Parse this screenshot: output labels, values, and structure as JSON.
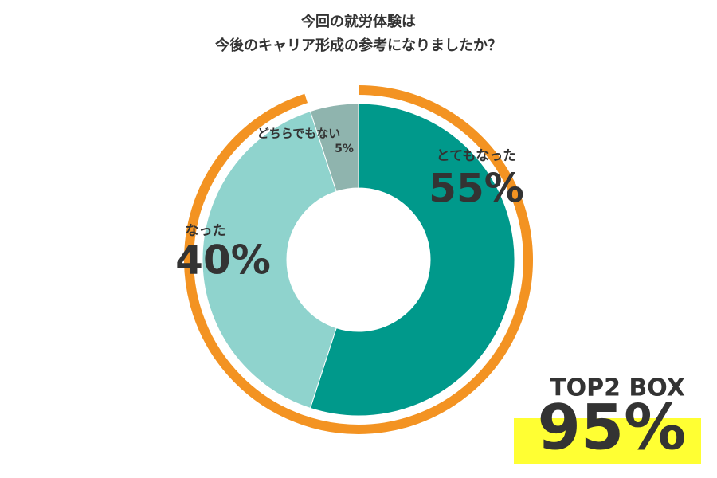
{
  "chart_data": {
    "type": "donut",
    "title": [
      "今回の就労体験は",
      "今後のキャリア形成の参考になりましたか？"
    ],
    "categories": [
      "とてもなった",
      "なった",
      "どちらでもない"
    ],
    "values": [
      55,
      40,
      5
    ],
    "value_labels": [
      "55%",
      "40%",
      "5%"
    ],
    "colors": [
      "#00998b",
      "#8fd3cd",
      "#8fb4ae"
    ],
    "top2": {
      "label": "TOP2 BOX",
      "value": 95,
      "value_label": "95%",
      "color": "#f39322",
      "highlight": "#ffff33"
    }
  }
}
